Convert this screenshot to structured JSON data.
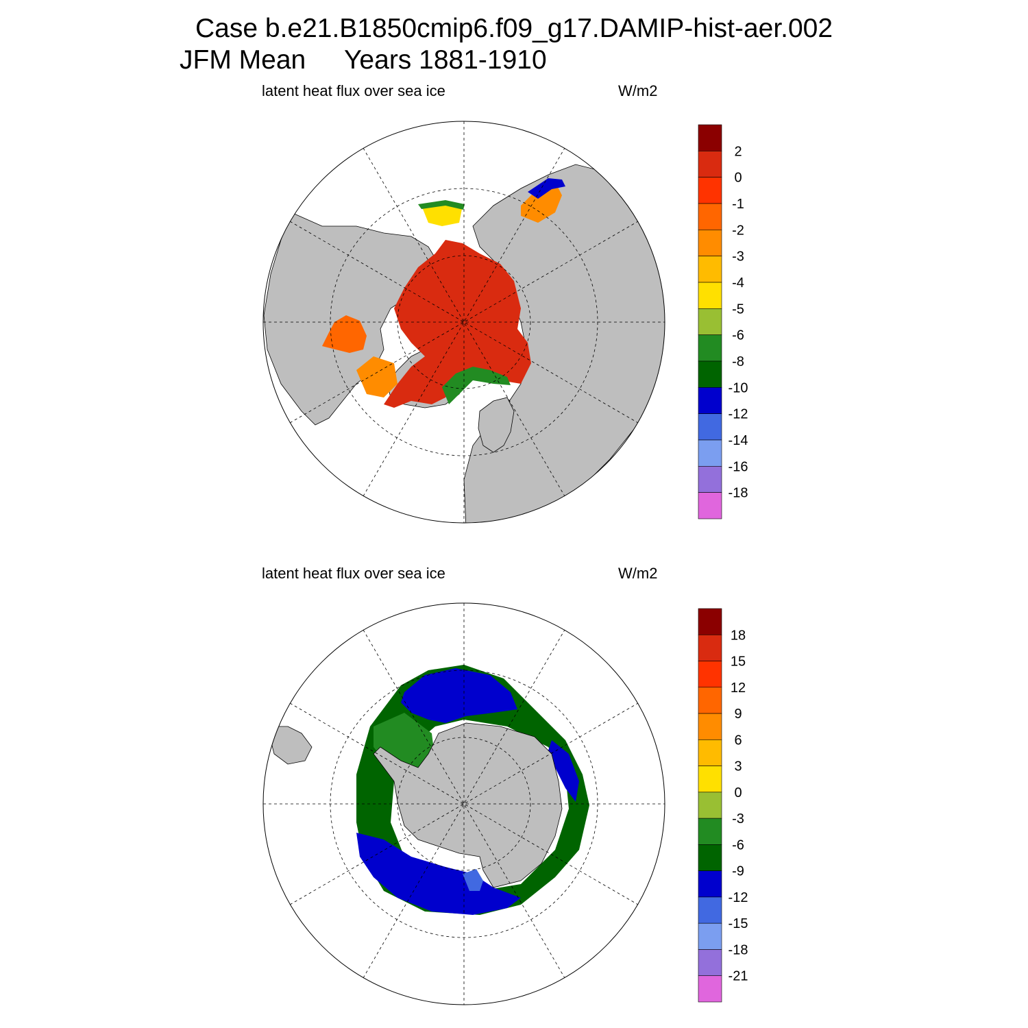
{
  "header": {
    "case_title": "Case b.e21.B1850cmip6.f09_g17.DAMIP-hist-aer.002",
    "season": "JFM Mean",
    "years": "Years 1881-1910"
  },
  "colors": {
    "land": "#bebebe",
    "ocean_no_ice": "#ffffff",
    "grid_line": "#000000"
  },
  "panels": [
    {
      "hemisphere": "north",
      "variable_label": "latent heat flux over sea ice",
      "units": "W/m2",
      "colorbar": {
        "labels": [
          "2",
          "0",
          "-1",
          "-2",
          "-3",
          "-4",
          "-5",
          "-6",
          "-8",
          "-10",
          "-12",
          "-14",
          "-16",
          "-18"
        ],
        "colors": [
          "#8b0000",
          "#d92b10",
          "#ff3300",
          "#ff6600",
          "#ff8c00",
          "#ffbb00",
          "#ffe000",
          "#99bf33",
          "#228b22",
          "#006400",
          "#0000cd",
          "#4169e1",
          "#7b9ef0",
          "#9370db",
          "#e066dd"
        ]
      }
    },
    {
      "hemisphere": "south",
      "variable_label": "latent heat flux over sea ice",
      "units": "W/m2",
      "colorbar": {
        "labels": [
          "18",
          "15",
          "12",
          "9",
          "6",
          "3",
          "0",
          "-3",
          "-6",
          "-9",
          "-12",
          "-15",
          "-18",
          "-21"
        ],
        "colors": [
          "#8b0000",
          "#d92b10",
          "#ff3300",
          "#ff6600",
          "#ff8c00",
          "#ffbb00",
          "#ffe000",
          "#99bf33",
          "#228b22",
          "#006400",
          "#0000cd",
          "#4169e1",
          "#7b9ef0",
          "#9370db",
          "#e066dd"
        ]
      }
    }
  ]
}
